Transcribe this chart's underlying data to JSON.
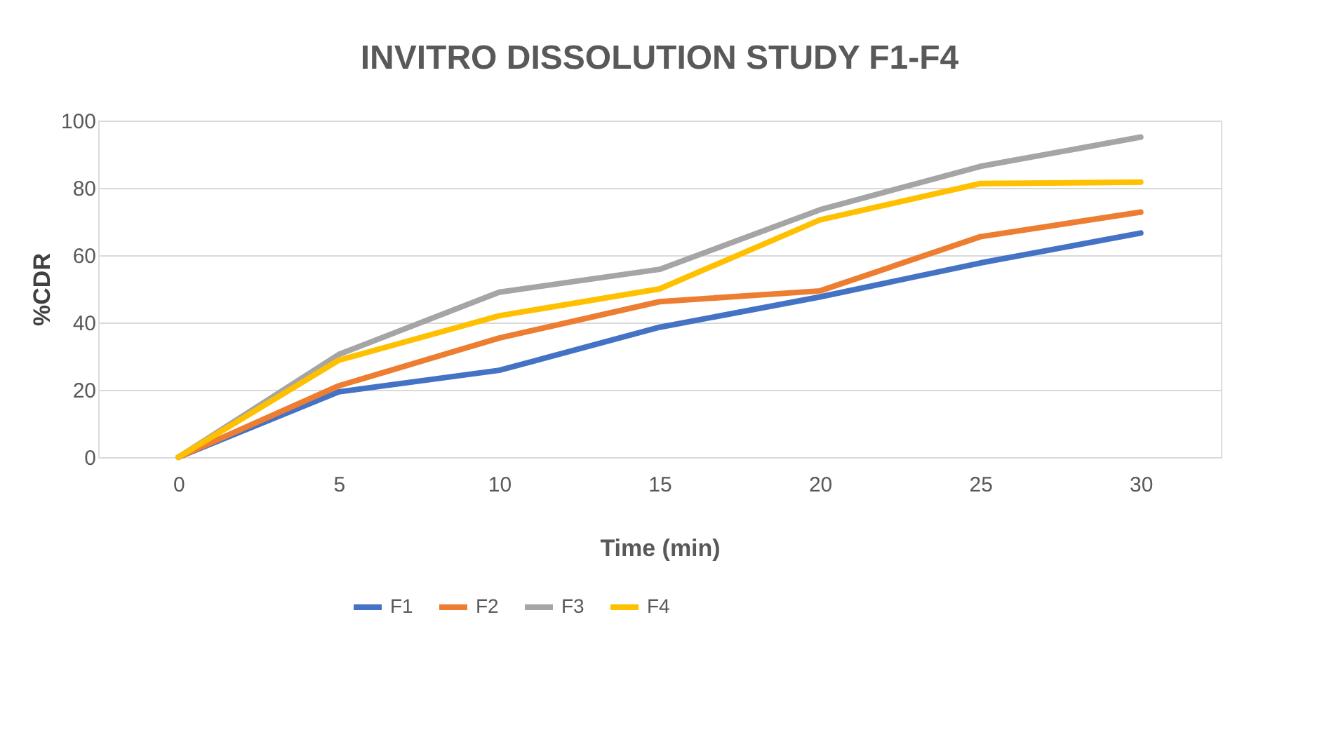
{
  "chart_data": {
    "type": "line",
    "title": "INVITRO DISSOLUTION STUDY F1-F4",
    "xlabel": "Time (min)",
    "ylabel": "%CDR",
    "categories": [
      "0",
      "5",
      "10",
      "15",
      "20",
      "25",
      "30"
    ],
    "series": [
      {
        "name": "F1",
        "color": "#4472c4",
        "values": [
          0,
          19.4,
          25.8,
          38.6,
          47.6,
          57.7,
          66.6
        ]
      },
      {
        "name": "F2",
        "color": "#ed7d31",
        "values": [
          0,
          21.2,
          35.4,
          46.2,
          49.4,
          65.5,
          72.8
        ]
      },
      {
        "name": "F3",
        "color": "#a5a5a5",
        "values": [
          0,
          30.5,
          49,
          55.8,
          73.5,
          86.4,
          95.1
        ]
      },
      {
        "name": "F4",
        "color": "#ffc000",
        "values": [
          0,
          28.8,
          42,
          50,
          70.5,
          81.3,
          81.7
        ]
      }
    ],
    "ylim": [
      0,
      100
    ],
    "yticks": [
      0,
      20,
      40,
      60,
      80,
      100
    ],
    "grid": "y",
    "legend": "bottom",
    "marker": "none",
    "line_style": "solid"
  }
}
